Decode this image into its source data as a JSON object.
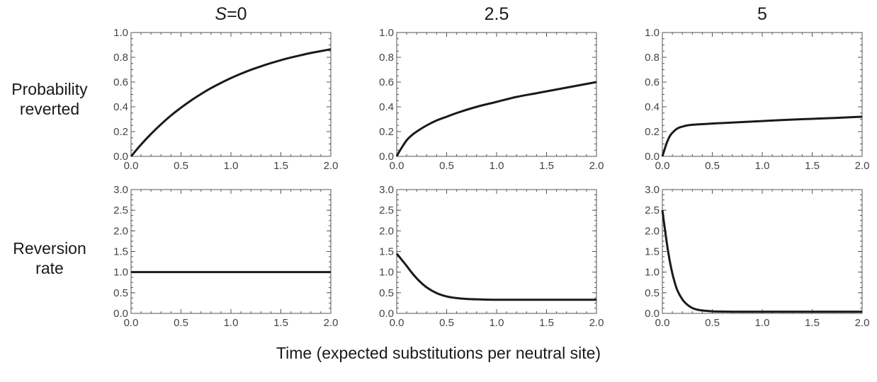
{
  "column_titles": [
    {
      "prefix": "S",
      "text": "=0"
    },
    {
      "prefix": "",
      "text": "2.5"
    },
    {
      "prefix": "",
      "text": "5"
    }
  ],
  "row_labels": [
    {
      "line1": "Probability",
      "line2": "reverted"
    },
    {
      "line1": "Reversion",
      "line2": "rate"
    }
  ],
  "xlabel": "Time (expected substitutions per neutral site)",
  "colors": {
    "line": "#1a1a1a",
    "axis": "#555555",
    "tick_text": "#444444"
  },
  "chart_data": [
    {
      "type": "line",
      "panel": "probability S=0",
      "xlim": [
        0,
        2
      ],
      "ylim": [
        0,
        1
      ],
      "xticks": [
        "0.0",
        "0.5",
        "1.0",
        "1.5",
        "2.0"
      ],
      "yticks": [
        "0.0",
        "0.2",
        "0.4",
        "0.6",
        "0.8",
        "1.0"
      ],
      "x": [
        0,
        0.1,
        0.2,
        0.3,
        0.4,
        0.5,
        0.6,
        0.7,
        0.8,
        0.9,
        1.0,
        1.1,
        1.2,
        1.3,
        1.4,
        1.5,
        1.6,
        1.7,
        1.8,
        1.9,
        2.0
      ],
      "y": [
        0,
        0.095,
        0.181,
        0.259,
        0.33,
        0.393,
        0.451,
        0.503,
        0.551,
        0.593,
        0.632,
        0.667,
        0.699,
        0.727,
        0.753,
        0.777,
        0.798,
        0.817,
        0.835,
        0.85,
        0.865
      ]
    },
    {
      "type": "line",
      "panel": "probability S=2.5",
      "xlim": [
        0,
        2
      ],
      "ylim": [
        0,
        1
      ],
      "xticks": [
        "0.0",
        "0.5",
        "1.0",
        "1.5",
        "2.0"
      ],
      "yticks": [
        "0.0",
        "0.2",
        "0.4",
        "0.6",
        "0.8",
        "1.0"
      ],
      "x": [
        0,
        0.02,
        0.05,
        0.1,
        0.15,
        0.2,
        0.3,
        0.4,
        0.5,
        0.6,
        0.8,
        1.0,
        1.2,
        1.4,
        1.6,
        1.8,
        2.0
      ],
      "y": [
        0,
        0.03,
        0.07,
        0.13,
        0.17,
        0.2,
        0.25,
        0.29,
        0.32,
        0.35,
        0.4,
        0.44,
        0.48,
        0.51,
        0.54,
        0.57,
        0.6
      ]
    },
    {
      "type": "line",
      "panel": "probability S=5",
      "xlim": [
        0,
        2
      ],
      "ylim": [
        0,
        1
      ],
      "xticks": [
        "0.0",
        "0.5",
        "1.0",
        "1.5",
        "2.0"
      ],
      "yticks": [
        "0.0",
        "0.2",
        "0.4",
        "0.6",
        "0.8",
        "1.0"
      ],
      "x": [
        0,
        0.02,
        0.04,
        0.06,
        0.08,
        0.1,
        0.15,
        0.2,
        0.25,
        0.3,
        0.4,
        0.5,
        0.75,
        1.0,
        1.25,
        1.5,
        1.75,
        2.0
      ],
      "y": [
        0,
        0.05,
        0.1,
        0.14,
        0.17,
        0.19,
        0.225,
        0.24,
        0.25,
        0.255,
        0.26,
        0.265,
        0.275,
        0.285,
        0.295,
        0.303,
        0.311,
        0.32
      ]
    },
    {
      "type": "line",
      "panel": "rate S=0",
      "xlim": [
        0,
        2
      ],
      "ylim": [
        0,
        3
      ],
      "xticks": [
        "0.0",
        "0.5",
        "1.0",
        "1.5",
        "2.0"
      ],
      "yticks": [
        "0.0",
        "0.5",
        "1.0",
        "1.5",
        "2.0",
        "2.5",
        "3.0"
      ],
      "x": [
        0,
        2.0
      ],
      "y": [
        1.0,
        1.0
      ]
    },
    {
      "type": "line",
      "panel": "rate S=2.5",
      "xlim": [
        0,
        2
      ],
      "ylim": [
        0,
        3
      ],
      "xticks": [
        "0.0",
        "0.5",
        "1.0",
        "1.5",
        "2.0"
      ],
      "yticks": [
        "0.0",
        "0.5",
        "1.0",
        "1.5",
        "2.0",
        "2.5",
        "3.0"
      ],
      "x": [
        0,
        0.05,
        0.1,
        0.15,
        0.2,
        0.25,
        0.3,
        0.4,
        0.5,
        0.6,
        0.7,
        0.8,
        1.0,
        1.2,
        1.5,
        2.0
      ],
      "y": [
        1.45,
        1.3,
        1.15,
        0.99,
        0.85,
        0.73,
        0.63,
        0.49,
        0.41,
        0.37,
        0.35,
        0.34,
        0.33,
        0.33,
        0.33,
        0.33
      ]
    },
    {
      "type": "line",
      "panel": "rate S=5",
      "xlim": [
        0,
        2
      ],
      "ylim": [
        0,
        3
      ],
      "xticks": [
        "0.0",
        "0.5",
        "1.0",
        "1.5",
        "2.0"
      ],
      "yticks": [
        "0.0",
        "0.5",
        "1.0",
        "1.5",
        "2.0",
        "2.5",
        "3.0"
      ],
      "x": [
        0,
        0.025,
        0.05,
        0.075,
        0.1,
        0.125,
        0.15,
        0.2,
        0.25,
        0.3,
        0.35,
        0.4,
        0.5,
        0.6,
        0.8,
        1.0,
        1.5,
        2.0
      ],
      "y": [
        2.5,
        2.05,
        1.62,
        1.26,
        0.97,
        0.74,
        0.56,
        0.34,
        0.21,
        0.13,
        0.09,
        0.07,
        0.05,
        0.045,
        0.04,
        0.04,
        0.04,
        0.04
      ]
    }
  ]
}
